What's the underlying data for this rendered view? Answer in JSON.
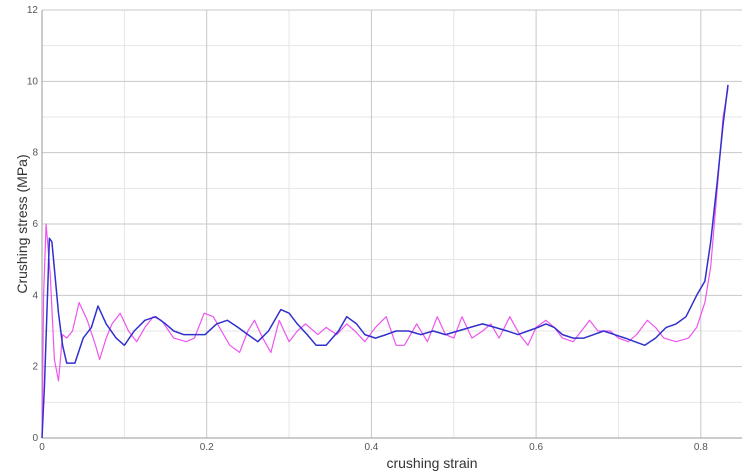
{
  "chart_data": {
    "type": "line",
    "title": "",
    "xlabel": "crushing strain",
    "ylabel": "Crushing stress (MPa)",
    "xlim": [
      0,
      0.85
    ],
    "ylim": [
      0,
      12
    ],
    "x_ticks": [
      0,
      0.2,
      0.4,
      0.6,
      0.8
    ],
    "x_tick_labels": [
      "0",
      "0.2",
      "0.4",
      "0.6",
      "0.8"
    ],
    "y_ticks": [
      0,
      2,
      4,
      6,
      8,
      10,
      12
    ],
    "y_tick_labels": [
      "0",
      "2",
      "4",
      "6",
      "8",
      "10",
      "12"
    ],
    "grid": true,
    "legend": "none",
    "series": [
      {
        "color": "#ee55ee",
        "points": [
          [
            0,
            0
          ],
          [
            0.002,
            4.0
          ],
          [
            0.005,
            6.0
          ],
          [
            0.01,
            4.6
          ],
          [
            0.015,
            2.2
          ],
          [
            0.02,
            1.6
          ],
          [
            0.025,
            2.9
          ],
          [
            0.03,
            2.8
          ],
          [
            0.037,
            3.0
          ],
          [
            0.045,
            3.8
          ],
          [
            0.055,
            3.3
          ],
          [
            0.065,
            2.6
          ],
          [
            0.07,
            2.2
          ],
          [
            0.078,
            2.8
          ],
          [
            0.085,
            3.2
          ],
          [
            0.095,
            3.5
          ],
          [
            0.105,
            3.0
          ],
          [
            0.115,
            2.7
          ],
          [
            0.125,
            3.1
          ],
          [
            0.135,
            3.4
          ],
          [
            0.145,
            3.3
          ],
          [
            0.16,
            2.8
          ],
          [
            0.175,
            2.7
          ],
          [
            0.185,
            2.8
          ],
          [
            0.197,
            3.5
          ],
          [
            0.208,
            3.4
          ],
          [
            0.218,
            3.0
          ],
          [
            0.228,
            2.6
          ],
          [
            0.24,
            2.4
          ],
          [
            0.25,
            3.0
          ],
          [
            0.258,
            3.3
          ],
          [
            0.268,
            2.8
          ],
          [
            0.278,
            2.4
          ],
          [
            0.288,
            3.3
          ],
          [
            0.3,
            2.7
          ],
          [
            0.31,
            3.0
          ],
          [
            0.32,
            3.2
          ],
          [
            0.335,
            2.9
          ],
          [
            0.345,
            3.1
          ],
          [
            0.358,
            2.9
          ],
          [
            0.37,
            3.2
          ],
          [
            0.38,
            3.0
          ],
          [
            0.392,
            2.7
          ],
          [
            0.405,
            3.1
          ],
          [
            0.418,
            3.4
          ],
          [
            0.43,
            2.6
          ],
          [
            0.44,
            2.6
          ],
          [
            0.455,
            3.2
          ],
          [
            0.468,
            2.7
          ],
          [
            0.48,
            3.4
          ],
          [
            0.49,
            2.9
          ],
          [
            0.5,
            2.8
          ],
          [
            0.51,
            3.4
          ],
          [
            0.522,
            2.8
          ],
          [
            0.535,
            3.0
          ],
          [
            0.545,
            3.2
          ],
          [
            0.555,
            2.8
          ],
          [
            0.568,
            3.4
          ],
          [
            0.58,
            2.9
          ],
          [
            0.59,
            2.6
          ],
          [
            0.6,
            3.1
          ],
          [
            0.612,
            3.3
          ],
          [
            0.622,
            3.1
          ],
          [
            0.632,
            2.8
          ],
          [
            0.645,
            2.7
          ],
          [
            0.655,
            3.0
          ],
          [
            0.665,
            3.3
          ],
          [
            0.675,
            3.0
          ],
          [
            0.69,
            3.0
          ],
          [
            0.7,
            2.8
          ],
          [
            0.712,
            2.7
          ],
          [
            0.722,
            2.9
          ],
          [
            0.735,
            3.3
          ],
          [
            0.745,
            3.1
          ],
          [
            0.755,
            2.8
          ],
          [
            0.77,
            2.7
          ],
          [
            0.785,
            2.8
          ],
          [
            0.795,
            3.1
          ],
          [
            0.805,
            3.8
          ],
          [
            0.812,
            4.8
          ],
          [
            0.82,
            7.0
          ],
          [
            0.827,
            9.0
          ],
          [
            0.833,
            9.8
          ]
        ]
      },
      {
        "color": "#3030cc",
        "points": [
          [
            0,
            0
          ],
          [
            0.003,
            1.5
          ],
          [
            0.006,
            3.5
          ],
          [
            0.009,
            5.6
          ],
          [
            0.012,
            5.5
          ],
          [
            0.016,
            4.5
          ],
          [
            0.02,
            3.5
          ],
          [
            0.025,
            2.6
          ],
          [
            0.03,
            2.1
          ],
          [
            0.04,
            2.1
          ],
          [
            0.05,
            2.8
          ],
          [
            0.06,
            3.1
          ],
          [
            0.068,
            3.7
          ],
          [
            0.078,
            3.2
          ],
          [
            0.09,
            2.8
          ],
          [
            0.1,
            2.6
          ],
          [
            0.112,
            3.0
          ],
          [
            0.125,
            3.3
          ],
          [
            0.138,
            3.4
          ],
          [
            0.15,
            3.2
          ],
          [
            0.16,
            3.0
          ],
          [
            0.172,
            2.9
          ],
          [
            0.185,
            2.9
          ],
          [
            0.198,
            2.9
          ],
          [
            0.212,
            3.2
          ],
          [
            0.225,
            3.3
          ],
          [
            0.238,
            3.1
          ],
          [
            0.25,
            2.9
          ],
          [
            0.262,
            2.7
          ],
          [
            0.275,
            3.0
          ],
          [
            0.29,
            3.6
          ],
          [
            0.3,
            3.5
          ],
          [
            0.31,
            3.2
          ],
          [
            0.322,
            2.9
          ],
          [
            0.333,
            2.6
          ],
          [
            0.345,
            2.6
          ],
          [
            0.36,
            3.0
          ],
          [
            0.37,
            3.4
          ],
          [
            0.382,
            3.2
          ],
          [
            0.392,
            2.9
          ],
          [
            0.405,
            2.8
          ],
          [
            0.418,
            2.9
          ],
          [
            0.43,
            3.0
          ],
          [
            0.445,
            3.0
          ],
          [
            0.46,
            2.9
          ],
          [
            0.475,
            3.0
          ],
          [
            0.49,
            2.9
          ],
          [
            0.505,
            3.0
          ],
          [
            0.52,
            3.1
          ],
          [
            0.535,
            3.2
          ],
          [
            0.55,
            3.1
          ],
          [
            0.565,
            3.0
          ],
          [
            0.578,
            2.9
          ],
          [
            0.59,
            3.0
          ],
          [
            0.602,
            3.1
          ],
          [
            0.612,
            3.2
          ],
          [
            0.622,
            3.1
          ],
          [
            0.632,
            2.9
          ],
          [
            0.645,
            2.8
          ],
          [
            0.658,
            2.8
          ],
          [
            0.67,
            2.9
          ],
          [
            0.682,
            3.0
          ],
          [
            0.695,
            2.9
          ],
          [
            0.708,
            2.8
          ],
          [
            0.72,
            2.7
          ],
          [
            0.732,
            2.6
          ],
          [
            0.745,
            2.8
          ],
          [
            0.758,
            3.1
          ],
          [
            0.77,
            3.2
          ],
          [
            0.782,
            3.4
          ],
          [
            0.795,
            4.0
          ],
          [
            0.805,
            4.4
          ],
          [
            0.812,
            5.5
          ],
          [
            0.82,
            7.2
          ],
          [
            0.827,
            8.8
          ],
          [
            0.833,
            9.9
          ]
        ]
      }
    ]
  }
}
